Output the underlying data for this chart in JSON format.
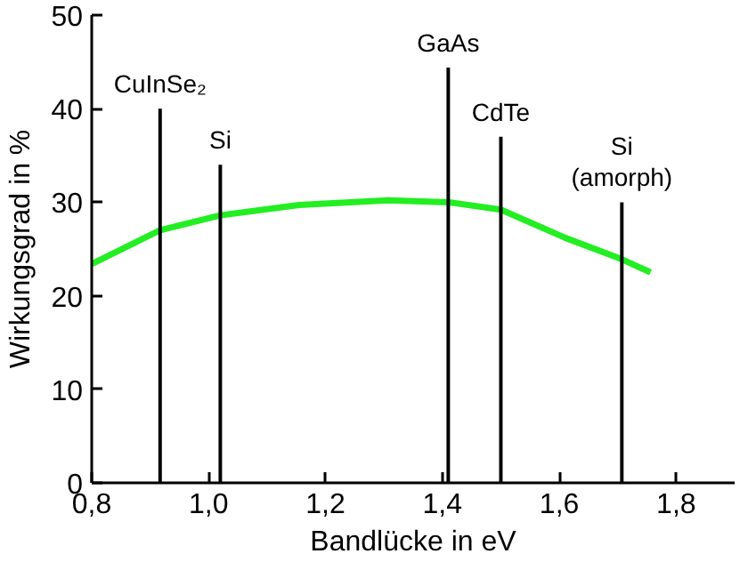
{
  "chart_data": {
    "type": "line",
    "xlabel": "Bandlücke in eV",
    "ylabel": "Wirkungsgrad in %",
    "xlim": [
      0.8,
      1.9
    ],
    "ylim": [
      0,
      50
    ],
    "xticks": [
      {
        "value": 0.8,
        "label": "0,8"
      },
      {
        "value": 1.0,
        "label": "1,0"
      },
      {
        "value": 1.2,
        "label": "1,2"
      },
      {
        "value": 1.4,
        "label": "1,4"
      },
      {
        "value": 1.6,
        "label": "1,6"
      },
      {
        "value": 1.8,
        "label": "1,8"
      }
    ],
    "yticks": [
      0,
      10,
      20,
      30,
      40,
      50
    ],
    "series": [
      {
        "color": "#22ee22",
        "x": [
          0.8,
          0.917,
          1.02,
          1.155,
          1.307,
          1.41,
          1.5,
          1.61,
          1.707,
          1.756
        ],
        "values": [
          23.4,
          27.0,
          28.6,
          29.7,
          30.2,
          30.0,
          29.2,
          26.2,
          23.9,
          22.5
        ]
      },
      {
        "type": "bar",
        "color": "#000000",
        "x": [
          0.917,
          1.02,
          1.41,
          1.5,
          1.707
        ],
        "values": [
          40,
          34,
          44.4,
          37,
          30
        ]
      }
    ],
    "annotations": [
      {
        "text": "CuInSe₂",
        "x": 0.917,
        "y": 40
      },
      {
        "text": "Si",
        "x": 1.02,
        "y": 34
      },
      {
        "text": "GaAs",
        "x": 1.41,
        "y": 44.4
      },
      {
        "text": "CdTe",
        "x": 1.5,
        "y": 37
      },
      {
        "text": "Si\n(amorph)",
        "x": 1.707,
        "y": 30
      }
    ],
    "grid": false
  }
}
